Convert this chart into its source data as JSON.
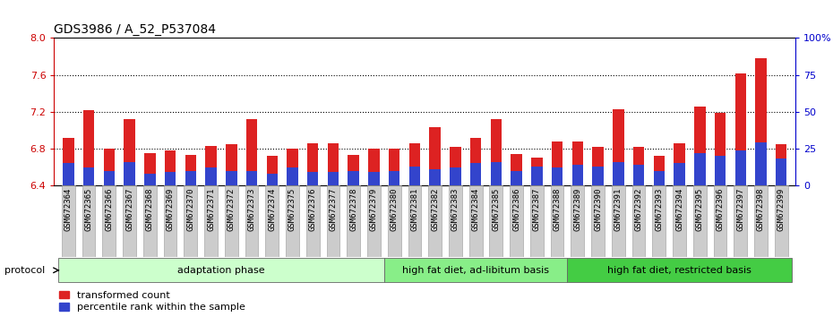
{
  "title": "GDS3986 / A_52_P537084",
  "samples": [
    "GSM672364",
    "GSM672365",
    "GSM672366",
    "GSM672367",
    "GSM672368",
    "GSM672369",
    "GSM672370",
    "GSM672371",
    "GSM672372",
    "GSM672373",
    "GSM672374",
    "GSM672375",
    "GSM672376",
    "GSM672377",
    "GSM672378",
    "GSM672379",
    "GSM672380",
    "GSM672381",
    "GSM672382",
    "GSM672383",
    "GSM672384",
    "GSM672385",
    "GSM672386",
    "GSM672387",
    "GSM672388",
    "GSM672389",
    "GSM672390",
    "GSM672391",
    "GSM672392",
    "GSM672393",
    "GSM672394",
    "GSM672395",
    "GSM672396",
    "GSM672397",
    "GSM672398",
    "GSM672399"
  ],
  "transformed_count": [
    6.92,
    7.22,
    6.8,
    7.12,
    6.75,
    6.78,
    6.73,
    6.83,
    6.85,
    7.12,
    6.72,
    6.8,
    6.86,
    6.86,
    6.73,
    6.8,
    6.8,
    6.86,
    7.03,
    6.82,
    6.92,
    7.12,
    6.74,
    6.7,
    6.88,
    6.88,
    6.82,
    7.23,
    6.82,
    6.72,
    6.86,
    7.26,
    7.19,
    7.62,
    7.78,
    6.85
  ],
  "percentile_rank": [
    15,
    12,
    10,
    16,
    8,
    9,
    10,
    12,
    10,
    10,
    8,
    12,
    9,
    9,
    10,
    9,
    10,
    13,
    11,
    12,
    15,
    16,
    10,
    13,
    12,
    14,
    13,
    16,
    14,
    10,
    15,
    22,
    20,
    24,
    29,
    18
  ],
  "ymin": 6.4,
  "ymax": 8.0,
  "yticks": [
    6.4,
    6.8,
    7.2,
    7.6,
    8.0
  ],
  "right_yticks": [
    0,
    25,
    50,
    75,
    100
  ],
  "bar_color_red": "#dd2222",
  "bar_color_blue": "#3344cc",
  "bar_width": 0.55,
  "protocol_groups": [
    {
      "label": "adaptation phase",
      "start": 0,
      "end": 16,
      "color": "#ccffcc"
    },
    {
      "label": "high fat diet, ad-libitum basis",
      "start": 16,
      "end": 25,
      "color": "#88ee88"
    },
    {
      "label": "high fat diet, restricted basis",
      "start": 25,
      "end": 36,
      "color": "#44cc44"
    }
  ],
  "legend_red_label": "transformed count",
  "legend_blue_label": "percentile rank within the sample",
  "left_axis_color": "#cc0000",
  "right_axis_color": "#0000cc",
  "background_color": "#ffffff",
  "tick_label_bg": "#cccccc",
  "protocol_label": "protocol",
  "title_fontsize": 10,
  "tick_fontsize": 6.5,
  "label_fontsize": 8,
  "legend_fontsize": 8
}
